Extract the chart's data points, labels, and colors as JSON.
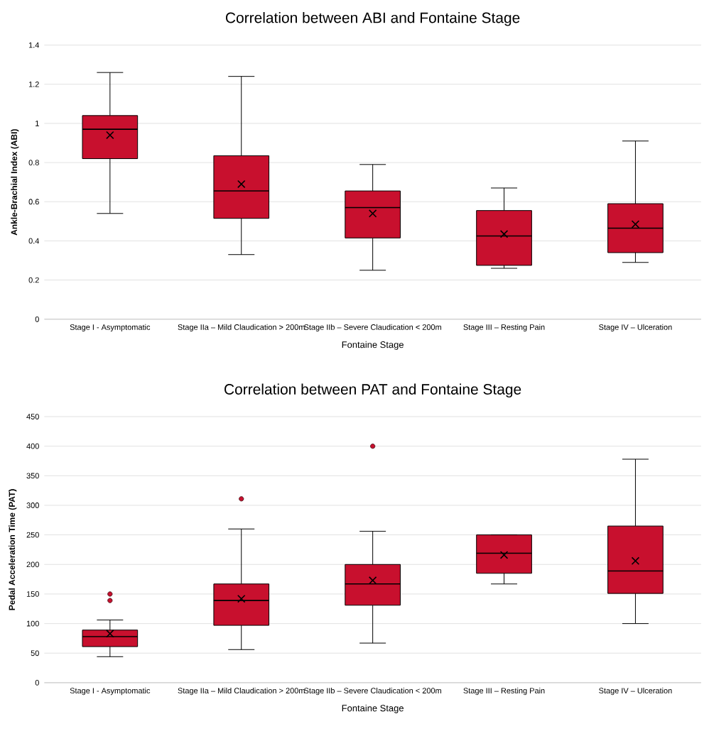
{
  "chart_data": [
    {
      "type": "box",
      "title": "Correlation between ABI and Fontaine Stage",
      "xlabel": "Fontaine Stage",
      "ylabel": "Ankle-Brachial Index (ABI)",
      "categories": [
        "Stage I - Asymptomatic",
        "Stage IIa – Mild Claudication > 200m",
        "Stage IIb – Severe Claudication < 200m",
        "Stage III – Resting Pain",
        "Stage IV – Ulceration"
      ],
      "ylim": [
        0,
        1.4
      ],
      "yticks": [
        0,
        0.2,
        0.4,
        0.6,
        0.8,
        1,
        1.2,
        1.4
      ],
      "grid": "y",
      "series": [
        {
          "color": "#c8102e",
          "boxes": [
            {
              "low": 0.54,
              "q1": 0.82,
              "median": 0.97,
              "q3": 1.04,
              "high": 1.26,
              "mean": 0.94
            },
            {
              "low": 0.33,
              "q1": 0.515,
              "median": 0.655,
              "q3": 0.835,
              "high": 1.24,
              "mean": 0.69
            },
            {
              "low": 0.25,
              "q1": 0.415,
              "median": 0.57,
              "q3": 0.655,
              "high": 0.79,
              "mean": 0.54
            },
            {
              "low": 0.26,
              "q1": 0.275,
              "median": 0.425,
              "q3": 0.555,
              "high": 0.67,
              "mean": 0.435
            },
            {
              "low": 0.29,
              "q1": 0.34,
              "median": 0.465,
              "q3": 0.59,
              "high": 0.91,
              "mean": 0.485
            }
          ]
        }
      ]
    },
    {
      "type": "box",
      "title": "Correlation between PAT and Fontaine Stage",
      "xlabel": "Fontaine Stage",
      "ylabel": "Pedal Acceleration Time (PAT)",
      "categories": [
        "Stage I - Asymptomatic",
        "Stage IIa – Mild Claudication > 200m",
        "Stage IIb – Severe Claudication < 200m",
        "Stage III – Resting Pain",
        "Stage IV – Ulceration"
      ],
      "ylim": [
        0,
        450
      ],
      "yticks": [
        0,
        50,
        100,
        150,
        200,
        250,
        300,
        350,
        400,
        450
      ],
      "grid": "y",
      "series": [
        {
          "color": "#c8102e",
          "boxes": [
            {
              "low": 44,
              "q1": 61,
              "median": 78,
              "q3": 89,
              "high": 106,
              "mean": 83,
              "outliers": [
                150,
                139
              ]
            },
            {
              "low": 56,
              "q1": 97,
              "median": 139,
              "q3": 167,
              "high": 260,
              "mean": 142,
              "outliers": [
                311
              ]
            },
            {
              "low": 67,
              "q1": 131,
              "median": 167,
              "q3": 200,
              "high": 256,
              "mean": 173,
              "outliers": [
                400
              ]
            },
            {
              "low": 167,
              "q1": 185,
              "median": 219,
              "q3": 250,
              "high": 250,
              "mean": 216
            },
            {
              "low": 100,
              "q1": 151,
              "median": 189,
              "q3": 265,
              "high": 378,
              "mean": 206
            }
          ]
        }
      ]
    }
  ]
}
